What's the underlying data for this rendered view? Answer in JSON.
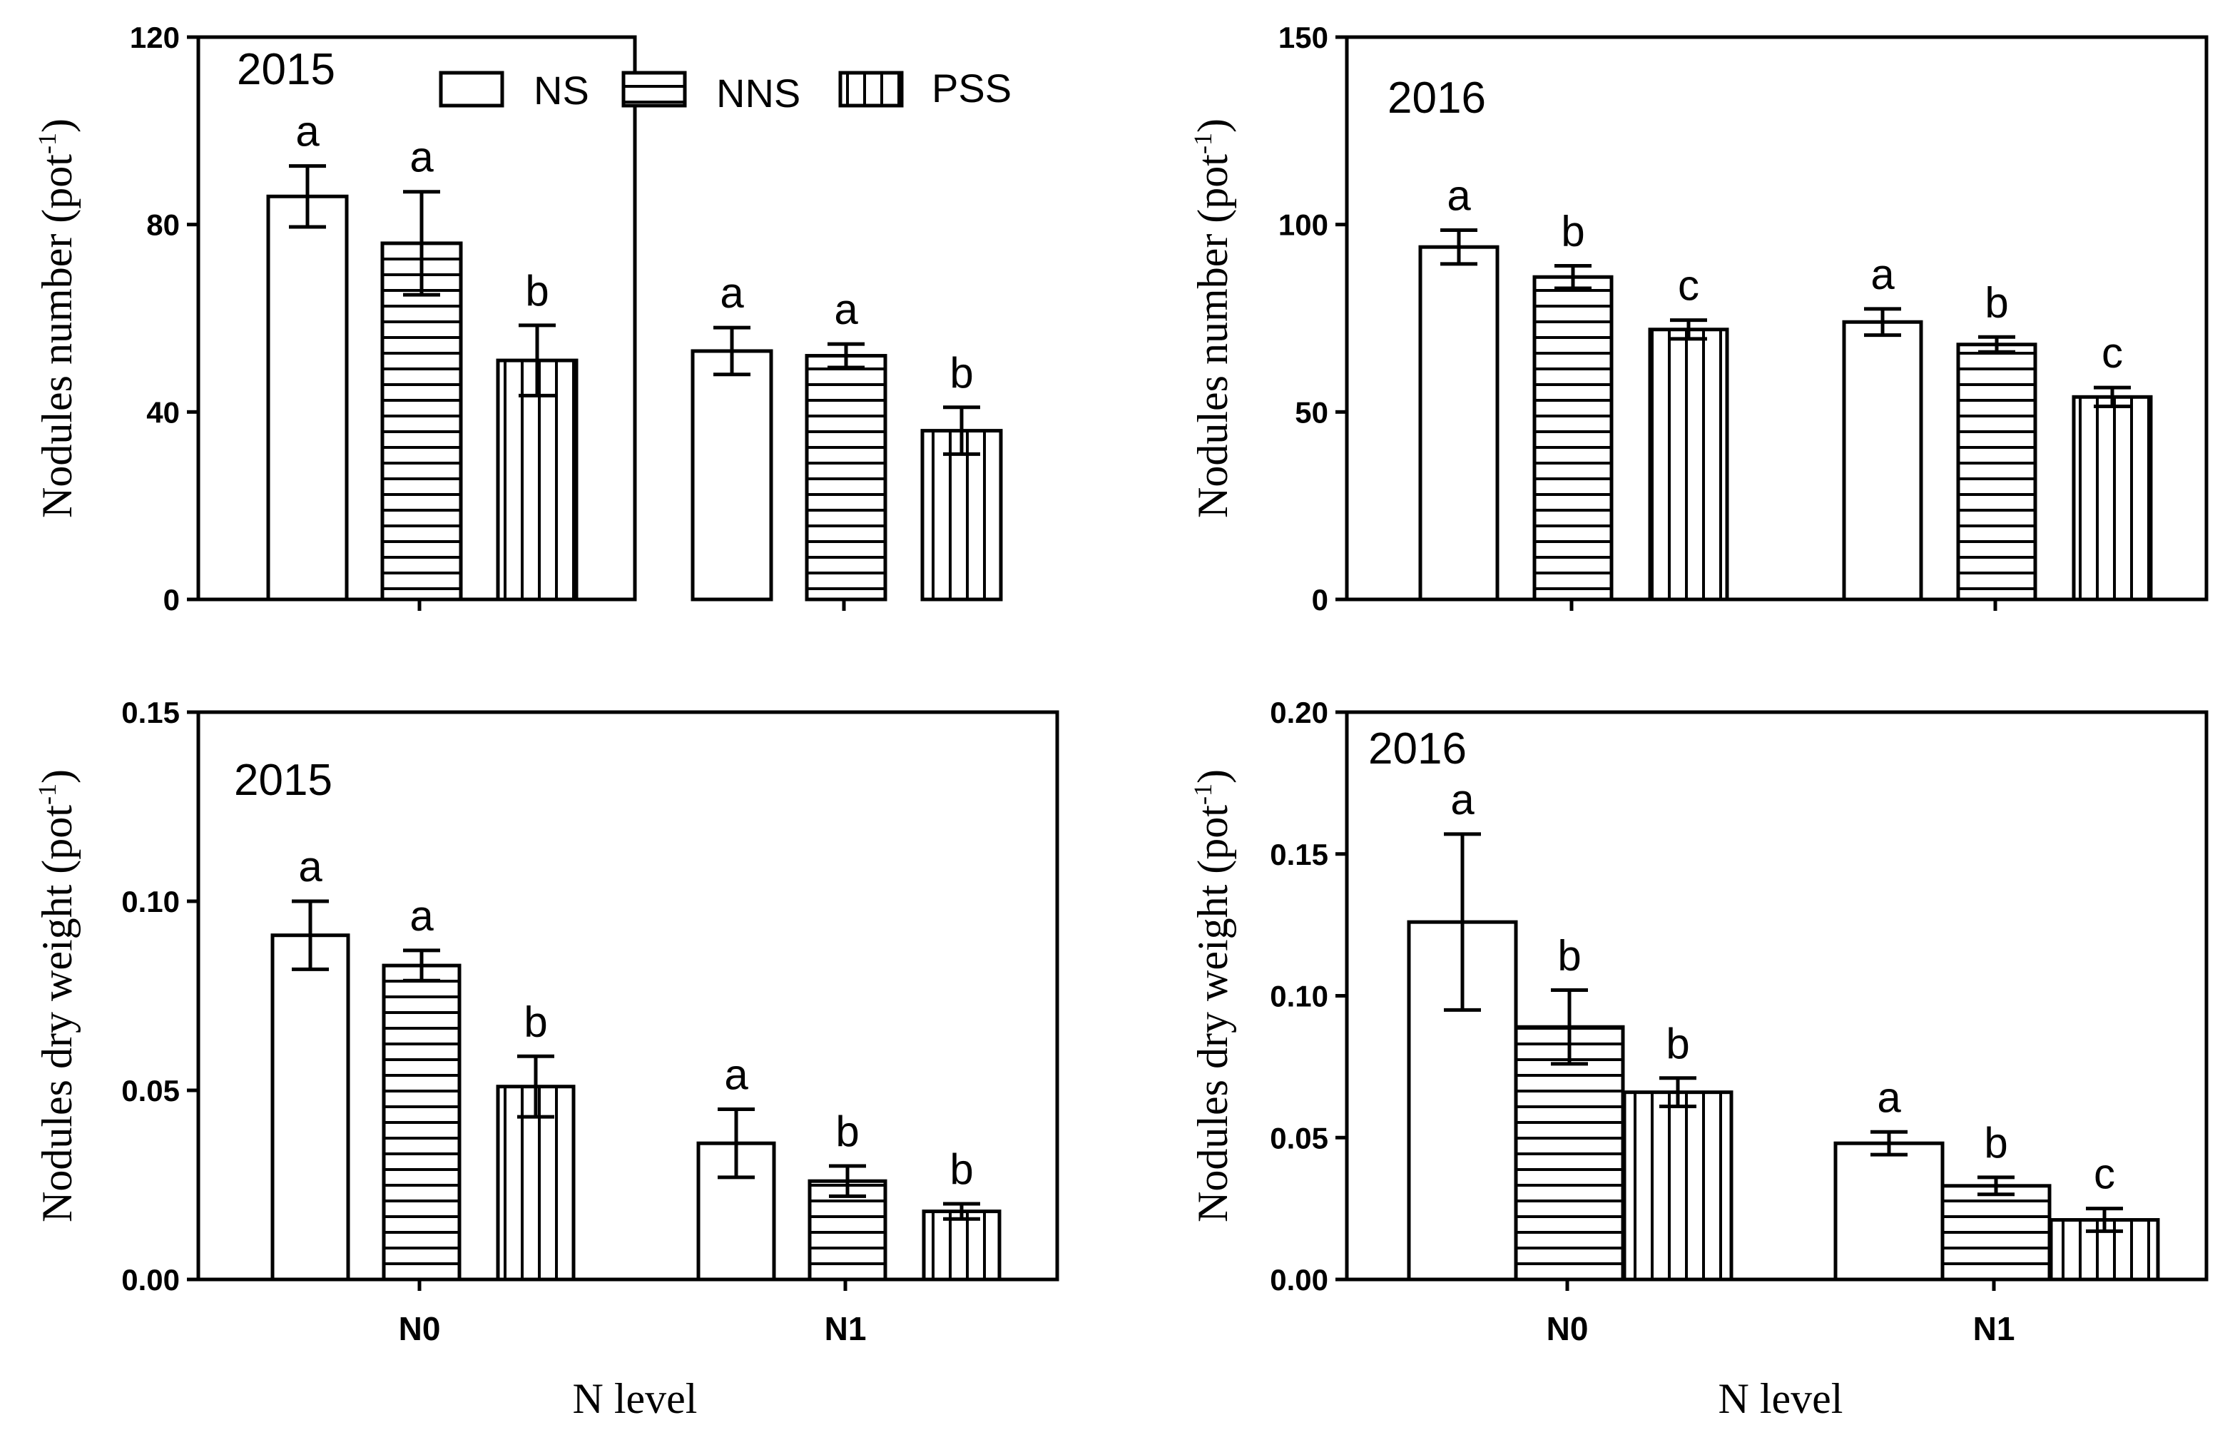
{
  "figure": {
    "legend": [
      "NS",
      "NNS",
      "PSS"
    ],
    "xlabel": "N level"
  },
  "chart_data": [
    {
      "type": "bar",
      "panel": "top-left",
      "title": "2015",
      "ylabel": "Nodules number (pot",
      "ylabel_sup": "-1",
      "ylabel_close": ")",
      "ylim": [
        0,
        120
      ],
      "yticks": [
        0,
        40,
        80,
        120
      ],
      "ytick_labels": [
        "0",
        "40",
        "80",
        "120"
      ],
      "categories": [
        "N0",
        "N1"
      ],
      "show_category_labels": false,
      "show_legend": true,
      "series": [
        {
          "name": "NS",
          "values": [
            86,
            53
          ],
          "errors": [
            6.5,
            5
          ],
          "letters": [
            "a",
            "a"
          ]
        },
        {
          "name": "NNS",
          "values": [
            76,
            52
          ],
          "errors": [
            11,
            2.5
          ],
          "letters": [
            "a",
            "a"
          ]
        },
        {
          "name": "PSS",
          "values": [
            51,
            36
          ],
          "errors": [
            7.5,
            5
          ],
          "letters": [
            "b",
            "b"
          ]
        }
      ]
    },
    {
      "type": "bar",
      "panel": "top-right",
      "title": "2016",
      "ylabel": "Nodules number (pot",
      "ylabel_sup": "-1",
      "ylabel_close": ")",
      "ylim": [
        0,
        150
      ],
      "yticks": [
        0,
        50,
        100,
        150
      ],
      "ytick_labels": [
        "0",
        "50",
        "100",
        "150"
      ],
      "categories": [
        "N0",
        "N1"
      ],
      "show_category_labels": false,
      "show_legend": false,
      "series": [
        {
          "name": "NS",
          "values": [
            94,
            74
          ],
          "errors": [
            4.5,
            3.5
          ],
          "letters": [
            "a",
            "a"
          ]
        },
        {
          "name": "NNS",
          "values": [
            86,
            68
          ],
          "errors": [
            3,
            2
          ],
          "letters": [
            "b",
            "b"
          ]
        },
        {
          "name": "PSS",
          "values": [
            72,
            54
          ],
          "errors": [
            2.5,
            2.5
          ],
          "letters": [
            "c",
            "c"
          ]
        }
      ]
    },
    {
      "type": "bar",
      "panel": "bottom-left",
      "title": "2015",
      "ylabel": "Nodules dry weight (pot",
      "ylabel_sup": "-1",
      "ylabel_close": ")",
      "ylim": [
        0,
        0.15
      ],
      "yticks": [
        0,
        0.05,
        0.1,
        0.15
      ],
      "ytick_labels": [
        "0.00",
        "0.05",
        "0.10",
        "0.15"
      ],
      "categories": [
        "N0",
        "N1"
      ],
      "show_category_labels": true,
      "show_legend": false,
      "series": [
        {
          "name": "NS",
          "values": [
            0.091,
            0.036
          ],
          "errors": [
            0.009,
            0.009
          ],
          "letters": [
            "a",
            "a"
          ]
        },
        {
          "name": "NNS",
          "values": [
            0.083,
            0.026
          ],
          "errors": [
            0.004,
            0.004
          ],
          "letters": [
            "a",
            "b"
          ]
        },
        {
          "name": "PSS",
          "values": [
            0.051,
            0.018
          ],
          "errors": [
            0.008,
            0.002
          ],
          "letters": [
            "b",
            "b"
          ]
        }
      ]
    },
    {
      "type": "bar",
      "panel": "bottom-right",
      "title": "2016",
      "ylabel": "Nodules dry weight (pot",
      "ylabel_sup": "-1",
      "ylabel_close": ")",
      "ylim": [
        0,
        0.2
      ],
      "yticks": [
        0,
        0.05,
        0.1,
        0.15,
        0.2
      ],
      "ytick_labels": [
        "0.00",
        "0.05",
        "0.10",
        "0.15",
        "0.20"
      ],
      "categories": [
        "N0",
        "N1"
      ],
      "show_category_labels": true,
      "show_legend": false,
      "series": [
        {
          "name": "NS",
          "values": [
            0.126,
            0.048
          ],
          "errors": [
            0.031,
            0.004
          ],
          "letters": [
            "a",
            "a"
          ]
        },
        {
          "name": "NNS",
          "values": [
            0.089,
            0.033
          ],
          "errors": [
            0.013,
            0.003
          ],
          "letters": [
            "b",
            "b"
          ]
        },
        {
          "name": "PSS",
          "values": [
            0.066,
            0.021
          ],
          "errors": [
            0.005,
            0.004
          ],
          "letters": [
            "b",
            "c"
          ]
        }
      ]
    }
  ]
}
